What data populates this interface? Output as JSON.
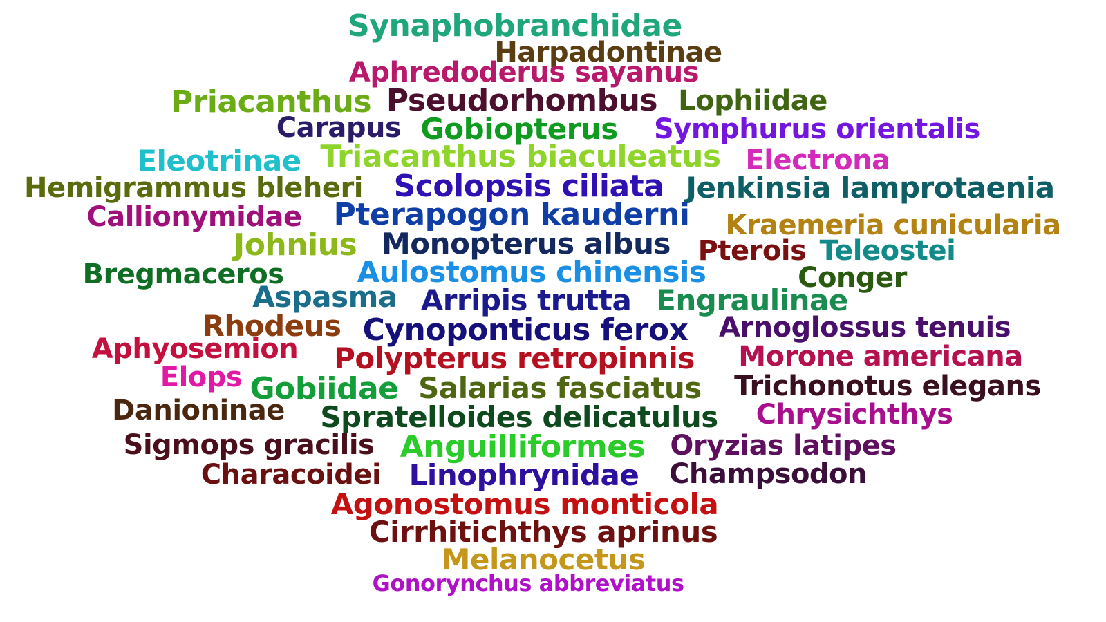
{
  "words": [
    {
      "text": "Synaphobranchidae",
      "color": "#1fa67a"
    },
    {
      "text": "Harpadontinae",
      "color": "#5a3e12"
    },
    {
      "text": "Aphredoderus sayanus",
      "color": "#b8196a"
    },
    {
      "text": "Priacanthus",
      "color": "#6aab16"
    },
    {
      "text": "Pseudorhombus",
      "color": "#4d0f2e"
    },
    {
      "text": "Lophiidae",
      "color": "#3f6412"
    },
    {
      "text": "Carapus",
      "color": "#2c1b68"
    },
    {
      "text": "Gobiopterus",
      "color": "#0f9b1f"
    },
    {
      "text": "Symphurus orientalis",
      "color": "#7316e0"
    },
    {
      "text": "Eleotrinae",
      "color": "#1fbfcc"
    },
    {
      "text": "Triacanthus biaculeatus",
      "color": "#8fd42a"
    },
    {
      "text": "Electrona",
      "color": "#d42ab9"
    },
    {
      "text": "Hemigrammus bleheri",
      "color": "#5a6b0d"
    },
    {
      "text": "Scolopsis ciliata",
      "color": "#2e10b3"
    },
    {
      "text": "Jenkinsia lamprotaenia",
      "color": "#0f5e66"
    },
    {
      "text": "Callionymidae",
      "color": "#a0107a"
    },
    {
      "text": "Pterapogon kauderni",
      "color": "#0f3fa6"
    },
    {
      "text": "Kraemeria cunicularia",
      "color": "#b38212"
    },
    {
      "text": "Johnius",
      "color": "#8cb81a"
    },
    {
      "text": "Monopterus albus",
      "color": "#13285e"
    },
    {
      "text": "Pterois",
      "color": "#7a1010"
    },
    {
      "text": "Teleostei",
      "color": "#128a8a"
    },
    {
      "text": "Bregmaceros",
      "color": "#0f6e23"
    },
    {
      "text": "Aulostomus chinensis",
      "color": "#1a8fe6"
    },
    {
      "text": "Conger",
      "color": "#2a5a0f"
    },
    {
      "text": "Aspasma",
      "color": "#1a6e8c"
    },
    {
      "text": "Arripis trutta",
      "color": "#1a1a8c"
    },
    {
      "text": "Engraulinae",
      "color": "#1a8c4f"
    },
    {
      "text": "Rhodeus",
      "color": "#8c3d0f"
    },
    {
      "text": "Cynoponticus ferox",
      "color": "#15107a"
    },
    {
      "text": "Arnoglossus tenuis",
      "color": "#4a0f6b"
    },
    {
      "text": "Aphyosemion",
      "color": "#c4103f"
    },
    {
      "text": "Polypterus retropinnis",
      "color": "#b5101f"
    },
    {
      "text": "Morone americana",
      "color": "#b5104f"
    },
    {
      "text": "Elops",
      "color": "#e01aa6"
    },
    {
      "text": "Gobiidae",
      "color": "#139e3a"
    },
    {
      "text": "Salarias fasciatus",
      "color": "#4f6613"
    },
    {
      "text": "Trichonotus elegans",
      "color": "#3a0f1f"
    },
    {
      "text": "Danioninae",
      "color": "#4a2810"
    },
    {
      "text": "Spratelloides delicatulus",
      "color": "#0f4a1f"
    },
    {
      "text": "Chrysichthys",
      "color": "#a80f8c"
    },
    {
      "text": "Sigmops gracilis",
      "color": "#4a0f1a"
    },
    {
      "text": "Anguilliformes",
      "color": "#2acc2a"
    },
    {
      "text": "Oryzias latipes",
      "color": "#5e105e"
    },
    {
      "text": "Characoidei",
      "color": "#6b1010"
    },
    {
      "text": "Linophrynidae",
      "color": "#2e10a0"
    },
    {
      "text": "Champsodon",
      "color": "#3a0f3a"
    },
    {
      "text": "Agonostomus monticola",
      "color": "#c41010"
    },
    {
      "text": "Cirrhitichthys aprinus",
      "color": "#6e1010"
    },
    {
      "text": "Melanocetus",
      "color": "#c4961a"
    },
    {
      "text": "Gonorynchus abbreviatus",
      "color": "#b010c8"
    }
  ]
}
